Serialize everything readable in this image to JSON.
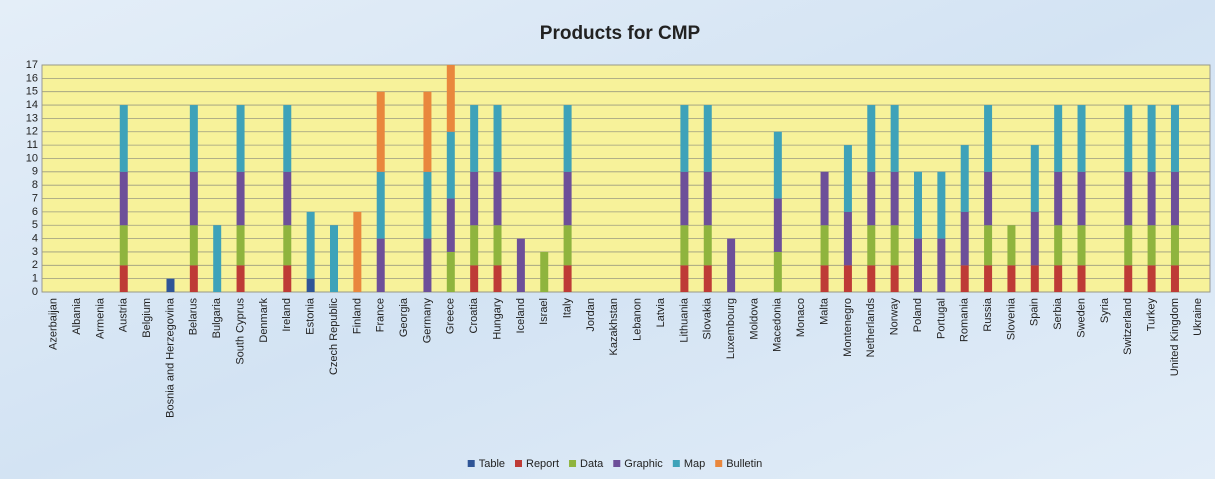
{
  "chart_data": {
    "type": "stacked_bar",
    "title": "Products for CMP",
    "categories": [
      "Azerbaijan",
      "Albania",
      "Armenia",
      "Austria",
      "Belgium",
      "Bosnia and Herzegovina",
      "Belarus",
      "Bulgaria",
      "South Cyprus",
      "Denmark",
      "Ireland",
      "Estonia",
      "Czech Republic",
      "Finland",
      "France",
      "Georgia",
      "Germany",
      "Greece",
      "Croatia",
      "Hungary",
      "Iceland",
      "Israel",
      "Italy",
      "Jordan",
      "Kazakhstan",
      "Lebanon",
      "Latvia",
      "Lithuania",
      "Slovakia",
      "Luxembourg",
      "Moldova",
      "Macedonia",
      "Monaco",
      "Malta",
      "Montenegro",
      "Netherlands",
      "Norway",
      "Poland",
      "Portugal",
      "Romania",
      "Russia",
      "Slovenia",
      "Spain",
      "Serbia",
      "Sweden",
      "Syria",
      "Switzerland",
      "Turkey",
      "United Kingdom",
      "Ukraine"
    ],
    "series": [
      {
        "name": "Table",
        "color": "#2f5597",
        "values": [
          0,
          0,
          0,
          0,
          0,
          1,
          0,
          0,
          0,
          0,
          0,
          1,
          0,
          0,
          0,
          0,
          0,
          0,
          0,
          0,
          0,
          0,
          0,
          0,
          0,
          0,
          0,
          0,
          0,
          0,
          0,
          0,
          0,
          0,
          0,
          0,
          0,
          0,
          0,
          0,
          0,
          0,
          0,
          0,
          0,
          0,
          0,
          0,
          0,
          0
        ]
      },
      {
        "name": "Report",
        "color": "#be3b36",
        "values": [
          0,
          0,
          0,
          2,
          0,
          0,
          2,
          0,
          2,
          0,
          2,
          0,
          0,
          0,
          0,
          0,
          0,
          0,
          2,
          2,
          0,
          0,
          2,
          0,
          0,
          0,
          0,
          2,
          2,
          0,
          0,
          0,
          0,
          2,
          2,
          2,
          2,
          0,
          0,
          2,
          2,
          2,
          2,
          2,
          2,
          0,
          2,
          2,
          2,
          0
        ]
      },
      {
        "name": "Data",
        "color": "#8fb43e",
        "values": [
          0,
          0,
          0,
          3,
          0,
          0,
          3,
          0,
          3,
          0,
          3,
          0,
          0,
          0,
          0,
          0,
          0,
          3,
          3,
          3,
          0,
          3,
          3,
          0,
          0,
          0,
          0,
          3,
          3,
          0,
          0,
          3,
          0,
          3,
          0,
          3,
          3,
          0,
          0,
          0,
          3,
          3,
          0,
          3,
          3,
          0,
          3,
          3,
          3,
          0
        ]
      },
      {
        "name": "Graphic",
        "color": "#6d4f99",
        "values": [
          0,
          0,
          0,
          4,
          0,
          0,
          4,
          0,
          4,
          0,
          4,
          0,
          0,
          0,
          4,
          0,
          4,
          4,
          4,
          4,
          4,
          0,
          4,
          0,
          0,
          0,
          0,
          4,
          4,
          4,
          0,
          4,
          0,
          4,
          4,
          4,
          4,
          4,
          4,
          4,
          4,
          0,
          4,
          4,
          4,
          0,
          4,
          4,
          4,
          0
        ]
      },
      {
        "name": "Map",
        "color": "#3ea2b9",
        "values": [
          0,
          0,
          0,
          5,
          0,
          0,
          5,
          5,
          5,
          0,
          5,
          5,
          5,
          0,
          5,
          0,
          5,
          5,
          5,
          5,
          0,
          0,
          5,
          0,
          0,
          0,
          0,
          5,
          5,
          0,
          0,
          5,
          0,
          0,
          5,
          5,
          5,
          5,
          5,
          5,
          5,
          0,
          5,
          5,
          5,
          0,
          5,
          5,
          5,
          0
        ]
      },
      {
        "name": "Bulletin",
        "color": "#e9873d",
        "values": [
          0,
          0,
          0,
          0,
          0,
          0,
          0,
          0,
          0,
          0,
          0,
          0,
          0,
          6,
          6,
          0,
          6,
          5,
          0,
          0,
          0,
          0,
          0,
          0,
          0,
          0,
          0,
          0,
          0,
          0,
          0,
          0,
          0,
          0,
          0,
          0,
          0,
          0,
          0,
          0,
          0,
          0,
          0,
          0,
          0,
          0,
          0,
          0,
          0,
          0
        ]
      }
    ],
    "ylim": [
      0,
      17
    ],
    "yticks": [
      0,
      1,
      2,
      3,
      4,
      5,
      6,
      7,
      8,
      9,
      10,
      11,
      12,
      13,
      14,
      15,
      16,
      17
    ],
    "grid": true,
    "legend": "bottom"
  }
}
